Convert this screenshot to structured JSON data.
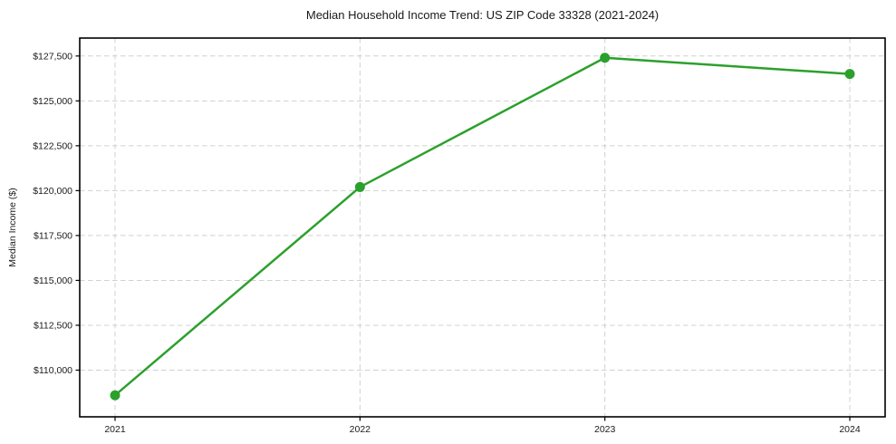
{
  "chart_data": {
    "type": "line",
    "title": "Median Household Income Trend: US ZIP Code 33328 (2021-2024)",
    "xlabel": "",
    "ylabel": "Median Income ($)",
    "x": [
      2021,
      2022,
      2023,
      2024
    ],
    "x_tick_labels": [
      "2021",
      "2022",
      "2023",
      "2024"
    ],
    "values": [
      108600,
      120200,
      127400,
      126500
    ],
    "y_ticks": [
      110000,
      112500,
      115000,
      117500,
      120000,
      122500,
      125000,
      127500
    ],
    "y_tick_labels": [
      "$110,000",
      "$112,500",
      "$115,000",
      "$117,500",
      "$120,000",
      "$122,500",
      "$125,000",
      "$127,500"
    ],
    "ylim": [
      107400,
      128500
    ],
    "grid": true,
    "grid_style": "dashed",
    "legend": "none",
    "line_color": "#2ca02c",
    "grid_color": "#d0d0d0",
    "axis_color": "#000000",
    "text_color": "#1a1a1a",
    "background_color": "#ffffff"
  }
}
